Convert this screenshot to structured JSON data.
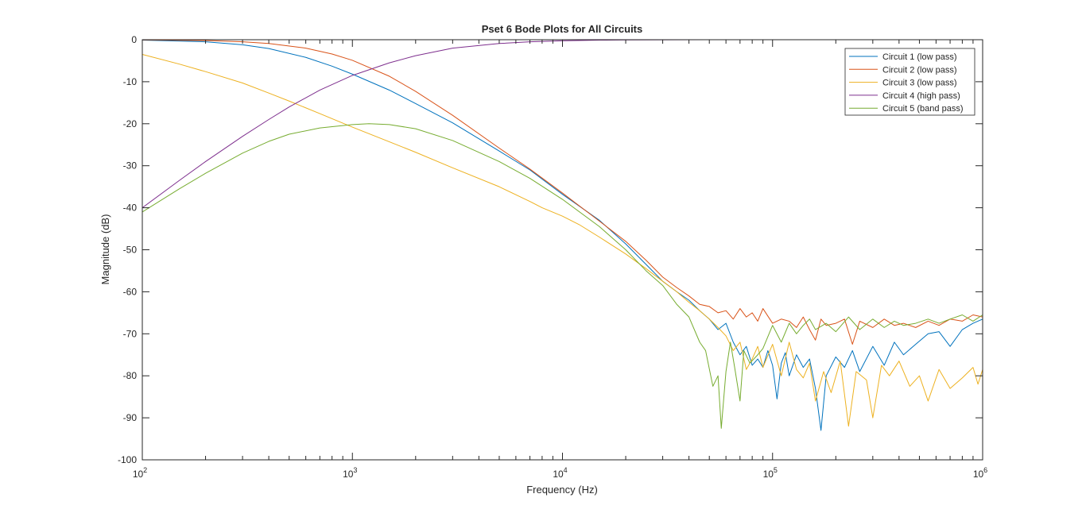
{
  "chart_data": {
    "type": "line",
    "title": "Pset 6 Bode Plots for All Circuits",
    "xlabel": "Frequency (Hz)",
    "ylabel": "Magnitude (dB)",
    "xscale": "log",
    "xlim": [
      100,
      1000000
    ],
    "ylim": [
      -100,
      0
    ],
    "x_ticks": [
      {
        "value": 100,
        "base": "10",
        "exp": "2"
      },
      {
        "value": 1000,
        "base": "10",
        "exp": "3"
      },
      {
        "value": 10000,
        "base": "10",
        "exp": "4"
      },
      {
        "value": 100000,
        "base": "10",
        "exp": "5"
      },
      {
        "value": 1000000,
        "base": "10",
        "exp": "6"
      }
    ],
    "y_ticks": [
      {
        "value": 0,
        "label": "0"
      },
      {
        "value": -10,
        "label": "-10"
      },
      {
        "value": -20,
        "label": "-20"
      },
      {
        "value": -30,
        "label": "-30"
      },
      {
        "value": -40,
        "label": "-40"
      },
      {
        "value": -50,
        "label": "-50"
      },
      {
        "value": -60,
        "label": "-60"
      },
      {
        "value": -70,
        "label": "-70"
      },
      {
        "value": -80,
        "label": "-80"
      },
      {
        "value": -90,
        "label": "-90"
      },
      {
        "value": -100,
        "label": "-100"
      }
    ],
    "grid": false,
    "legend_position": "top-right",
    "series": [
      {
        "name": "Circuit 1 (low pass)",
        "color": "#0072BD",
        "points": [
          [
            100,
            -0.1
          ],
          [
            200,
            -0.5
          ],
          [
            300,
            -1.2
          ],
          [
            400,
            -2.1
          ],
          [
            600,
            -4.2
          ],
          [
            800,
            -6.3
          ],
          [
            1000,
            -8.2
          ],
          [
            1500,
            -12.0
          ],
          [
            2000,
            -15.2
          ],
          [
            3000,
            -19.8
          ],
          [
            5000,
            -26.5
          ],
          [
            7000,
            -31.0
          ],
          [
            10000,
            -36.8
          ],
          [
            15000,
            -43.0
          ],
          [
            20000,
            -48.6
          ],
          [
            25000,
            -53.5
          ],
          [
            30000,
            -57.5
          ],
          [
            35000,
            -60.0
          ],
          [
            40000,
            -62.0
          ],
          [
            45000,
            -64.5
          ],
          [
            50000,
            -66.5
          ],
          [
            55000,
            -69.0
          ],
          [
            60000,
            -67.5
          ],
          [
            65000,
            -72.0
          ],
          [
            70000,
            -75.0
          ],
          [
            75000,
            -73.0
          ],
          [
            80000,
            -77.5
          ],
          [
            85000,
            -76.0
          ],
          [
            90000,
            -78.0
          ],
          [
            95000,
            -74.0
          ],
          [
            100000,
            -77.5
          ],
          [
            105000,
            -85.5
          ],
          [
            110000,
            -77.0
          ],
          [
            115000,
            -74.5
          ],
          [
            120000,
            -80.0
          ],
          [
            130000,
            -75.0
          ],
          [
            140000,
            -78.0
          ],
          [
            150000,
            -76.0
          ],
          [
            160000,
            -83.0
          ],
          [
            170000,
            -93.0
          ],
          [
            180000,
            -80.0
          ],
          [
            200000,
            -75.5
          ],
          [
            220000,
            -78.0
          ],
          [
            240000,
            -74.0
          ],
          [
            260000,
            -79.0
          ],
          [
            300000,
            -73.0
          ],
          [
            340000,
            -77.5
          ],
          [
            380000,
            -72.0
          ],
          [
            420000,
            -75.0
          ],
          [
            480000,
            -72.5
          ],
          [
            550000,
            -70.0
          ],
          [
            620000,
            -69.5
          ],
          [
            700000,
            -73.0
          ],
          [
            800000,
            -69.0
          ],
          [
            900000,
            -67.5
          ],
          [
            1000000,
            -66.5
          ]
        ]
      },
      {
        "name": "Circuit 2 (low pass)",
        "color": "#D95319",
        "points": [
          [
            100,
            -0.05
          ],
          [
            200,
            -0.2
          ],
          [
            300,
            -0.5
          ],
          [
            400,
            -0.9
          ],
          [
            600,
            -2.0
          ],
          [
            800,
            -3.4
          ],
          [
            1000,
            -4.9
          ],
          [
            1500,
            -8.7
          ],
          [
            2000,
            -12.3
          ],
          [
            3000,
            -18.0
          ],
          [
            5000,
            -25.8
          ],
          [
            7000,
            -30.8
          ],
          [
            10000,
            -36.5
          ],
          [
            15000,
            -43.2
          ],
          [
            20000,
            -48.0
          ],
          [
            25000,
            -52.5
          ],
          [
            30000,
            -56.5
          ],
          [
            35000,
            -59.0
          ],
          [
            40000,
            -61.0
          ],
          [
            45000,
            -63.0
          ],
          [
            50000,
            -63.5
          ],
          [
            55000,
            -65.0
          ],
          [
            60000,
            -64.5
          ],
          [
            65000,
            -66.5
          ],
          [
            70000,
            -64.0
          ],
          [
            75000,
            -66.0
          ],
          [
            80000,
            -65.0
          ],
          [
            85000,
            -67.0
          ],
          [
            90000,
            -64.0
          ],
          [
            100000,
            -67.5
          ],
          [
            110000,
            -66.5
          ],
          [
            120000,
            -67.0
          ],
          [
            130000,
            -68.5
          ],
          [
            140000,
            -66.0
          ],
          [
            150000,
            -69.0
          ],
          [
            160000,
            -71.5
          ],
          [
            170000,
            -66.5
          ],
          [
            180000,
            -68.0
          ],
          [
            200000,
            -67.5
          ],
          [
            220000,
            -66.5
          ],
          [
            240000,
            -72.5
          ],
          [
            260000,
            -67.0
          ],
          [
            300000,
            -68.5
          ],
          [
            340000,
            -66.5
          ],
          [
            380000,
            -68.0
          ],
          [
            420000,
            -67.5
          ],
          [
            480000,
            -68.5
          ],
          [
            550000,
            -67.0
          ],
          [
            620000,
            -68.0
          ],
          [
            700000,
            -66.5
          ],
          [
            800000,
            -67.0
          ],
          [
            900000,
            -65.5
          ],
          [
            1000000,
            -66.0
          ]
        ]
      },
      {
        "name": "Circuit 3 (low pass)",
        "color": "#EDB120",
        "points": [
          [
            100,
            -3.5
          ],
          [
            150,
            -5.8
          ],
          [
            200,
            -7.6
          ],
          [
            300,
            -10.3
          ],
          [
            400,
            -12.7
          ],
          [
            500,
            -14.6
          ],
          [
            700,
            -17.6
          ],
          [
            1000,
            -20.8
          ],
          [
            1500,
            -24.3
          ],
          [
            2000,
            -26.8
          ],
          [
            3000,
            -30.5
          ],
          [
            5000,
            -35.0
          ],
          [
            7000,
            -38.5
          ],
          [
            8000,
            -40.0
          ],
          [
            10000,
            -42.0
          ],
          [
            12000,
            -44.0
          ],
          [
            15000,
            -47.0
          ],
          [
            20000,
            -51.0
          ],
          [
            25000,
            -54.5
          ],
          [
            30000,
            -57.5
          ],
          [
            35000,
            -60.0
          ],
          [
            40000,
            -62.5
          ],
          [
            45000,
            -64.5
          ],
          [
            50000,
            -66.5
          ],
          [
            55000,
            -68.5
          ],
          [
            60000,
            -70.5
          ],
          [
            65000,
            -74.0
          ],
          [
            70000,
            -72.0
          ],
          [
            75000,
            -78.5
          ],
          [
            80000,
            -76.0
          ],
          [
            85000,
            -73.0
          ],
          [
            90000,
            -78.0
          ],
          [
            100000,
            -72.5
          ],
          [
            110000,
            -80.0
          ],
          [
            120000,
            -72.0
          ],
          [
            130000,
            -78.5
          ],
          [
            140000,
            -80.5
          ],
          [
            150000,
            -77.0
          ],
          [
            160000,
            -86.0
          ],
          [
            175000,
            -79.0
          ],
          [
            190000,
            -84.0
          ],
          [
            210000,
            -76.5
          ],
          [
            230000,
            -92.0
          ],
          [
            250000,
            -79.0
          ],
          [
            280000,
            -81.0
          ],
          [
            300000,
            -90.0
          ],
          [
            330000,
            -77.5
          ],
          [
            360000,
            -80.0
          ],
          [
            400000,
            -76.5
          ],
          [
            450000,
            -82.5
          ],
          [
            500000,
            -80.0
          ],
          [
            550000,
            -86.0
          ],
          [
            620000,
            -78.5
          ],
          [
            700000,
            -83.0
          ],
          [
            800000,
            -80.5
          ],
          [
            900000,
            -78.0
          ],
          [
            950000,
            -82.0
          ],
          [
            1000000,
            -78.5
          ]
        ]
      },
      {
        "name": "Circuit 4 (high pass)",
        "color": "#7E2F8E",
        "points": [
          [
            100,
            -40.0
          ],
          [
            150,
            -33.5
          ],
          [
            200,
            -29.0
          ],
          [
            300,
            -23.0
          ],
          [
            400,
            -19.0
          ],
          [
            500,
            -16.0
          ],
          [
            700,
            -12.0
          ],
          [
            1000,
            -8.5
          ],
          [
            1500,
            -5.5
          ],
          [
            2000,
            -3.8
          ],
          [
            3000,
            -2.0
          ],
          [
            5000,
            -0.9
          ],
          [
            7000,
            -0.5
          ],
          [
            10000,
            -0.25
          ],
          [
            15000,
            -0.1
          ],
          [
            20000,
            -0.05
          ],
          [
            50000,
            0.0
          ],
          [
            100000,
            0.0
          ],
          [
            1000000,
            0.0
          ]
        ]
      },
      {
        "name": "Circuit 5 (band pass)",
        "color": "#77AC30",
        "points": [
          [
            100,
            -41.0
          ],
          [
            150,
            -35.5
          ],
          [
            200,
            -31.8
          ],
          [
            300,
            -27.0
          ],
          [
            400,
            -24.2
          ],
          [
            500,
            -22.5
          ],
          [
            700,
            -21.0
          ],
          [
            1000,
            -20.2
          ],
          [
            1200,
            -20.0
          ],
          [
            1500,
            -20.2
          ],
          [
            2000,
            -21.2
          ],
          [
            3000,
            -24.0
          ],
          [
            5000,
            -29.0
          ],
          [
            7000,
            -33.0
          ],
          [
            10000,
            -38.0
          ],
          [
            15000,
            -44.5
          ],
          [
            20000,
            -50.0
          ],
          [
            25000,
            -55.0
          ],
          [
            30000,
            -58.5
          ],
          [
            35000,
            -63.0
          ],
          [
            40000,
            -66.0
          ],
          [
            45000,
            -72.0
          ],
          [
            48000,
            -74.0
          ],
          [
            52000,
            -82.5
          ],
          [
            55000,
            -80.0
          ],
          [
            57000,
            -92.5
          ],
          [
            60000,
            -79.0
          ],
          [
            63000,
            -72.0
          ],
          [
            66000,
            -78.0
          ],
          [
            70000,
            -86.0
          ],
          [
            73000,
            -74.0
          ],
          [
            78000,
            -77.0
          ],
          [
            85000,
            -75.0
          ],
          [
            90000,
            -73.5
          ],
          [
            100000,
            -68.0
          ],
          [
            110000,
            -72.0
          ],
          [
            120000,
            -67.5
          ],
          [
            130000,
            -70.0
          ],
          [
            140000,
            -68.0
          ],
          [
            150000,
            -66.5
          ],
          [
            160000,
            -69.0
          ],
          [
            180000,
            -67.5
          ],
          [
            200000,
            -69.5
          ],
          [
            230000,
            -66.0
          ],
          [
            260000,
            -69.0
          ],
          [
            300000,
            -66.5
          ],
          [
            340000,
            -68.5
          ],
          [
            380000,
            -67.0
          ],
          [
            420000,
            -68.0
          ],
          [
            480000,
            -67.5
          ],
          [
            550000,
            -66.5
          ],
          [
            620000,
            -67.5
          ],
          [
            700000,
            -66.5
          ],
          [
            800000,
            -65.5
          ],
          [
            900000,
            -67.0
          ],
          [
            1000000,
            -65.5
          ]
        ]
      }
    ]
  }
}
